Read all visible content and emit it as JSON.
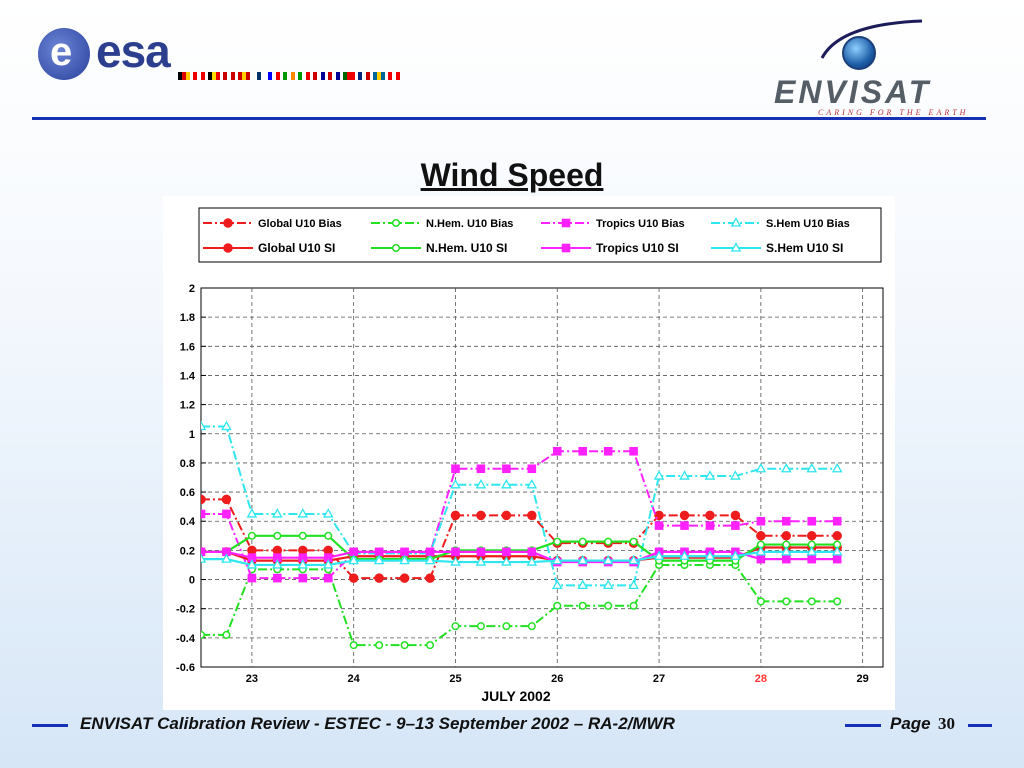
{
  "header": {
    "esa_logo_text": "esa",
    "esa_logo_initial": "e",
    "envisat_logo_text": "ENVISAT",
    "envisat_tagline": "CARING FOR THE EARTH"
  },
  "slide": {
    "title": "Wind Speed"
  },
  "footer": {
    "text": "ENVISAT Calibration Review - ESTEC - 9–13 September 2002 – RA-2/MWR",
    "page_label": "Page",
    "page_number": "30"
  },
  "colors": {
    "accent": "#1631b5",
    "global": "#ee1c1c",
    "nhem": "#22e022",
    "tropics": "#ff22ff",
    "shem": "#2ee6ee",
    "highlight_tick": "#ff3333"
  },
  "flags": [
    "de",
    "at",
    "be",
    "dk",
    "es",
    "fi",
    "fr",
    "ie",
    "it",
    "nl",
    "no",
    "pt",
    "uk",
    "se",
    "ch"
  ],
  "chart_data": {
    "type": "line",
    "xlabel": "JULY      2002",
    "ylabel": "",
    "xlim": [
      22.5,
      29.2
    ],
    "ylim": [
      -0.6,
      2
    ],
    "x_ticks": [
      23,
      24,
      25,
      26,
      27,
      28,
      29
    ],
    "x_tick_highlight": [
      28
    ],
    "y_ticks": [
      -0.6,
      -0.4,
      -0.2,
      0,
      0.2,
      0.4,
      0.6,
      0.8,
      1,
      1.2,
      1.4,
      1.6,
      1.8,
      2
    ],
    "grid": true,
    "legend": "top",
    "x": [
      22.5,
      22.75,
      23,
      23.25,
      23.5,
      23.75,
      24,
      24.25,
      24.5,
      24.75,
      25,
      25.25,
      25.5,
      25.75,
      26,
      26.25,
      26.5,
      26.75,
      27,
      27.25,
      27.5,
      27.75,
      28,
      28.25,
      28.5,
      28.75
    ],
    "series": [
      {
        "name": "Global U10 Bias",
        "group": "global",
        "style": "dashdot",
        "marker": "circle-filled",
        "values": [
          0.55,
          0.55,
          0.2,
          0.2,
          0.2,
          0.2,
          0.01,
          0.01,
          0.01,
          0.01,
          0.44,
          0.44,
          0.44,
          0.44,
          0.25,
          0.25,
          0.25,
          0.25,
          0.44,
          0.44,
          0.44,
          0.44,
          0.3,
          0.3,
          0.3,
          0.3
        ]
      },
      {
        "name": "N.Hem. U10 Bias",
        "group": "nhem",
        "style": "dashdot",
        "marker": "circle-open",
        "values": [
          -0.38,
          -0.38,
          0.07,
          0.07,
          0.07,
          0.07,
          -0.45,
          -0.45,
          -0.45,
          -0.45,
          -0.32,
          -0.32,
          -0.32,
          -0.32,
          -0.18,
          -0.18,
          -0.18,
          -0.18,
          0.1,
          0.1,
          0.1,
          0.1,
          -0.15,
          -0.15,
          -0.15,
          -0.15
        ]
      },
      {
        "name": "Tropics U10 Bias",
        "group": "tropics",
        "style": "dashdot",
        "marker": "square-filled",
        "values": [
          0.45,
          0.45,
          0.01,
          0.01,
          0.01,
          0.01,
          0.18,
          0.18,
          0.18,
          0.18,
          0.76,
          0.76,
          0.76,
          0.76,
          0.88,
          0.88,
          0.88,
          0.88,
          0.37,
          0.37,
          0.37,
          0.37,
          0.4,
          0.4,
          0.4,
          0.4
        ]
      },
      {
        "name": "S.Hem U10 Bias",
        "group": "shem",
        "style": "dashdot",
        "marker": "triangle-open",
        "values": [
          1.05,
          1.05,
          0.45,
          0.45,
          0.45,
          0.45,
          0.18,
          0.18,
          0.18,
          0.18,
          0.65,
          0.65,
          0.65,
          0.65,
          -0.04,
          -0.04,
          -0.04,
          -0.04,
          0.71,
          0.71,
          0.71,
          0.71,
          0.76,
          0.76,
          0.76,
          0.76
        ]
      },
      {
        "name": "Global U10 SI",
        "group": "global",
        "style": "solid",
        "marker": "circle-filled",
        "values": [
          0.19,
          0.19,
          0.13,
          0.13,
          0.13,
          0.13,
          0.16,
          0.16,
          0.16,
          0.16,
          0.16,
          0.16,
          0.16,
          0.16,
          0.13,
          0.13,
          0.13,
          0.13,
          0.15,
          0.15,
          0.15,
          0.15,
          0.22,
          0.22,
          0.22,
          0.22
        ]
      },
      {
        "name": "N.Hem. U10 SI",
        "group": "nhem",
        "style": "solid",
        "marker": "circle-open",
        "values": [
          0.19,
          0.19,
          0.3,
          0.3,
          0.3,
          0.3,
          0.14,
          0.14,
          0.14,
          0.14,
          0.2,
          0.2,
          0.2,
          0.2,
          0.26,
          0.26,
          0.26,
          0.26,
          0.13,
          0.13,
          0.13,
          0.13,
          0.24,
          0.24,
          0.24,
          0.24
        ]
      },
      {
        "name": "Tropics U10 SI",
        "group": "tropics",
        "style": "solid",
        "marker": "square-filled",
        "values": [
          0.19,
          0.19,
          0.15,
          0.15,
          0.15,
          0.15,
          0.19,
          0.19,
          0.19,
          0.19,
          0.19,
          0.19,
          0.19,
          0.19,
          0.12,
          0.12,
          0.12,
          0.12,
          0.19,
          0.19,
          0.19,
          0.19,
          0.14,
          0.14,
          0.14,
          0.14
        ]
      },
      {
        "name": "S.Hem U10  SI",
        "group": "shem",
        "style": "solid",
        "marker": "triangle-open",
        "values": [
          0.14,
          0.14,
          0.1,
          0.1,
          0.1,
          0.1,
          0.13,
          0.13,
          0.13,
          0.13,
          0.12,
          0.12,
          0.12,
          0.12,
          0.13,
          0.13,
          0.13,
          0.13,
          0.16,
          0.16,
          0.16,
          0.16,
          0.19,
          0.19,
          0.19,
          0.19
        ]
      }
    ]
  }
}
